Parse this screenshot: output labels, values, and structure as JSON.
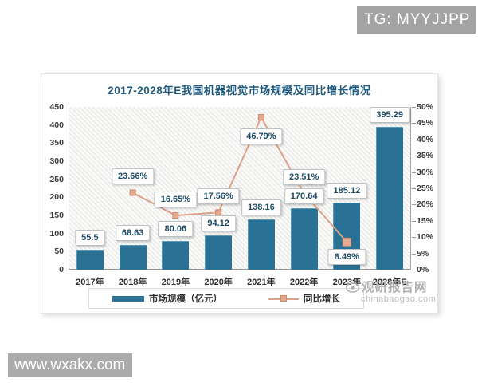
{
  "overlay": {
    "tg_badge": "TG: MYYJJPP",
    "site_badge": "www.wxakx.com"
  },
  "watermark": {
    "name": "观研报告网",
    "domain": "chinabaogao.com"
  },
  "chart_data": {
    "type": "bar+line combo",
    "title": "2017-2028年E我国机器视觉市场规模及同比增长情况",
    "categories": [
      "2017年",
      "2018年",
      "2019年",
      "2020年",
      "2021年",
      "2022年",
      "2023年",
      "2028年E"
    ],
    "series": [
      {
        "name": "市场规模（亿元）",
        "type": "bar",
        "axis": "left",
        "values": [
          55.5,
          68.63,
          80.06,
          94.12,
          138.16,
          170.64,
          185.12,
          395.29
        ],
        "labels": [
          "55.5",
          "68.63",
          "80.06",
          "94.12",
          "138.16",
          "170.64",
          "185.12",
          "395.29"
        ]
      },
      {
        "name": "同比增长",
        "type": "line",
        "axis": "right",
        "category_indices": [
          1,
          2,
          3,
          4,
          5,
          6
        ],
        "values": [
          23.66,
          16.65,
          17.56,
          46.79,
          23.51,
          8.49
        ],
        "labels": [
          "23.66%",
          "16.65%",
          "17.56%",
          "46.79%",
          "23.51%",
          "8.49%"
        ]
      }
    ],
    "left_axis": {
      "min": 0,
      "max": 450,
      "step": 50,
      "ticks": [
        "0",
        "50",
        "100",
        "150",
        "200",
        "250",
        "300",
        "350",
        "400",
        "450"
      ]
    },
    "right_axis": {
      "min": 0,
      "max": 50,
      "step": 5,
      "ticks": [
        "0%",
        "5%",
        "10%",
        "15%",
        "20%",
        "25%",
        "30%",
        "35%",
        "40%",
        "45%",
        "50%"
      ]
    },
    "legend": [
      {
        "label": "市场规模（亿元）",
        "swatch": "bar"
      },
      {
        "label": "同比增长",
        "swatch": "line"
      }
    ],
    "grid": "diagonal-hatch plot background, no gridlines",
    "legend_position": "bottom",
    "colors": {
      "bar": "#2a7295",
      "line": "#dca189",
      "marker_fill": "#e4ab90",
      "marker_border": "#c98a6e",
      "title": "#1f5a7d",
      "value_label_text": "#1d4c66",
      "value_label_border": "#b9c2c6"
    }
  }
}
